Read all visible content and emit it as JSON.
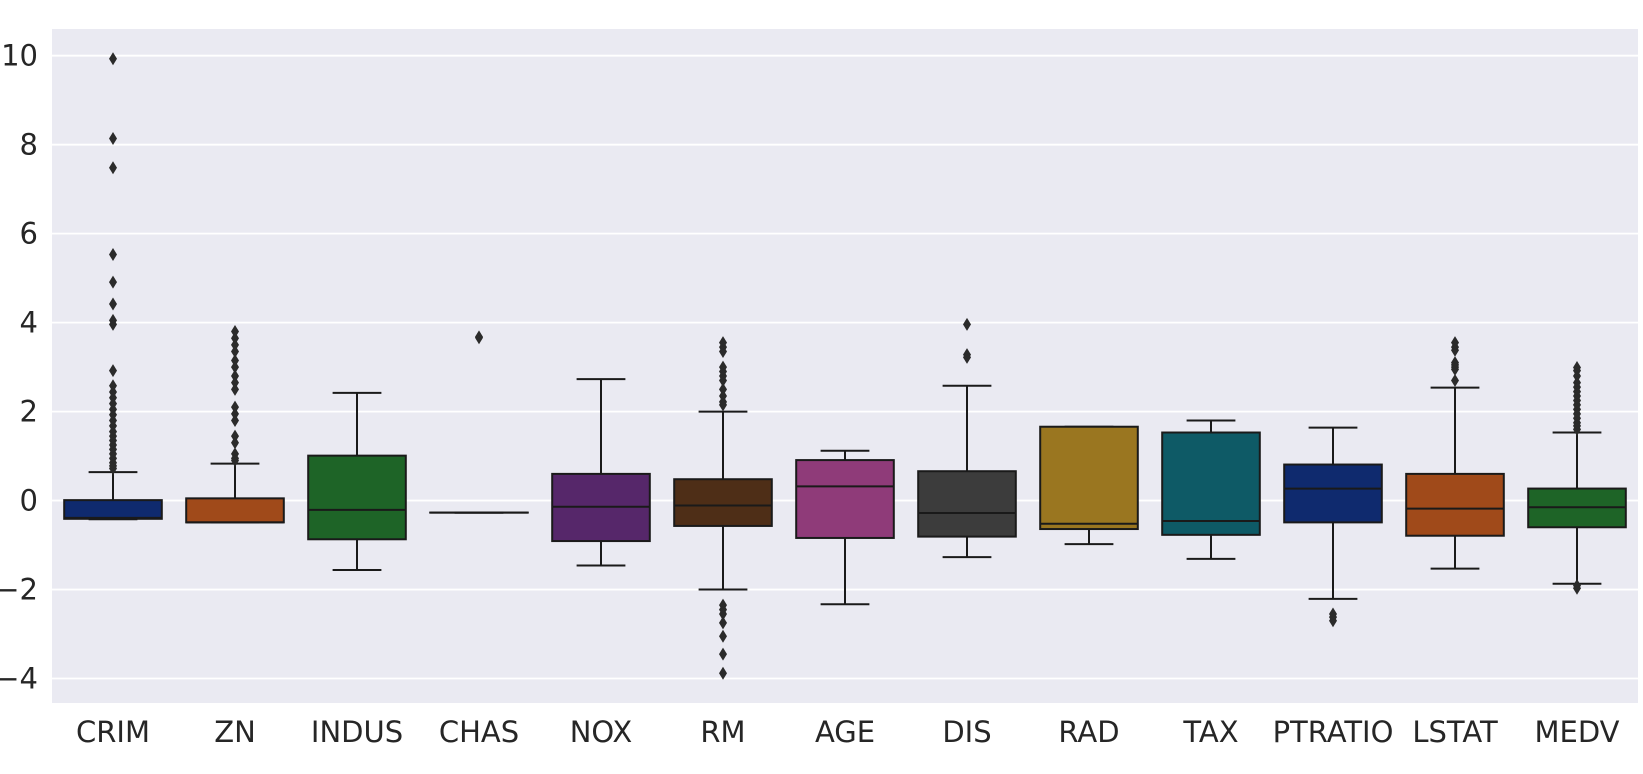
{
  "chart_data": {
    "type": "boxplot",
    "title": "",
    "xlabel": "",
    "ylabel": "",
    "ylim": [
      -4.55,
      10.6
    ],
    "yticks": [
      -4,
      -2,
      0,
      2,
      4,
      6,
      8,
      10
    ],
    "ytick_labels": [
      "−4",
      "−2",
      "0",
      "2",
      "4",
      "6",
      "8",
      "10"
    ],
    "grid": true,
    "categories": [
      "CRIM",
      "ZN",
      "INDUS",
      "CHAS",
      "NOX",
      "RM",
      "AGE",
      "DIS",
      "RAD",
      "TAX",
      "PTRATIO",
      "LSTAT",
      "MEDV"
    ],
    "boxes": [
      {
        "name": "CRIM",
        "color": "#0f2a6e",
        "q1": -0.41,
        "median": -0.39,
        "q3": 0.01,
        "whisker_low": -0.42,
        "whisker_high": 0.64,
        "outliers": [
          9.93,
          8.14,
          7.48,
          5.53,
          4.91,
          4.42,
          4.05,
          3.96,
          2.92,
          2.58,
          2.44,
          2.31,
          2.18,
          2.05,
          1.93,
          1.8,
          1.68,
          1.55,
          1.45,
          1.35,
          1.25,
          1.15,
          1.05,
          0.95,
          0.85,
          0.78,
          0.72
        ]
      },
      {
        "name": "ZN",
        "color": "#a04a1a",
        "q1": -0.49,
        "median": -0.49,
        "q3": 0.05,
        "whisker_low": -0.49,
        "whisker_high": 0.83,
        "outliers": [
          3.8,
          3.65,
          3.5,
          3.35,
          3.15,
          3.0,
          2.8,
          2.65,
          2.5,
          2.1,
          1.95,
          1.8,
          1.45,
          1.3,
          1.05,
          0.95,
          0.9
        ]
      },
      {
        "name": "INDUS",
        "color": "#1e6427",
        "q1": -0.87,
        "median": -0.21,
        "q3": 1.01,
        "whisker_low": -1.56,
        "whisker_high": 2.42,
        "outliers": []
      },
      {
        "name": "CHAS",
        "color": "#3f3f3f",
        "q1": -0.27,
        "median": -0.27,
        "q3": -0.27,
        "whisker_low": -0.27,
        "whisker_high": -0.27,
        "outliers": [
          3.66,
          3.68
        ]
      },
      {
        "name": "NOX",
        "color": "#56276a",
        "q1": -0.91,
        "median": -0.14,
        "q3": 0.6,
        "whisker_low": -1.46,
        "whisker_high": 2.73,
        "outliers": []
      },
      {
        "name": "RM",
        "color": "#4e2e17",
        "q1": -0.57,
        "median": -0.11,
        "q3": 0.48,
        "whisker_low": -2.0,
        "whisker_high": 2.0,
        "outliers": [
          3.55,
          3.45,
          3.35,
          3.0,
          2.9,
          2.8,
          2.7,
          2.5,
          2.35,
          2.22,
          2.15,
          -2.35,
          -2.45,
          -2.55,
          -2.75,
          -3.05,
          -3.45,
          -3.88
        ]
      },
      {
        "name": "AGE",
        "color": "#8f3b79",
        "q1": -0.84,
        "median": 0.32,
        "q3": 0.91,
        "whisker_low": -2.33,
        "whisker_high": 1.12,
        "outliers": []
      },
      {
        "name": "DIS",
        "color": "#3c3c3c",
        "q1": -0.81,
        "median": -0.28,
        "q3": 0.66,
        "whisker_low": -1.27,
        "whisker_high": 2.58,
        "outliers": [
          3.96,
          3.28,
          3.22
        ]
      },
      {
        "name": "RAD",
        "color": "#9a7620",
        "q1": -0.64,
        "median": -0.52,
        "q3": 1.66,
        "whisker_low": -0.98,
        "whisker_high": 1.66,
        "outliers": []
      },
      {
        "name": "TAX",
        "color": "#0e5a66",
        "q1": -0.77,
        "median": -0.46,
        "q3": 1.53,
        "whisker_low": -1.31,
        "whisker_high": 1.8,
        "outliers": []
      },
      {
        "name": "PTRATIO",
        "color": "#0f2a6e",
        "q1": -0.49,
        "median": 0.27,
        "q3": 0.81,
        "whisker_low": -2.21,
        "whisker_high": 1.64,
        "outliers": [
          -2.55,
          -2.62,
          -2.7
        ]
      },
      {
        "name": "LSTAT",
        "color": "#a04a1a",
        "q1": -0.79,
        "median": -0.18,
        "q3": 0.6,
        "whisker_low": -1.53,
        "whisker_high": 2.54,
        "outliers": [
          3.55,
          3.45,
          3.38,
          3.1,
          3.05,
          3.0,
          2.95,
          2.7
        ]
      },
      {
        "name": "MEDV",
        "color": "#1e6427",
        "q1": -0.6,
        "median": -0.15,
        "q3": 0.27,
        "whisker_low": -1.87,
        "whisker_high": 1.53,
        "outliers": [
          2.99,
          2.92,
          2.8,
          2.65,
          2.55,
          2.45,
          2.35,
          2.25,
          2.15,
          2.05,
          1.95,
          1.85,
          1.75,
          1.68,
          1.6,
          -1.91,
          -1.97
        ]
      }
    ]
  }
}
